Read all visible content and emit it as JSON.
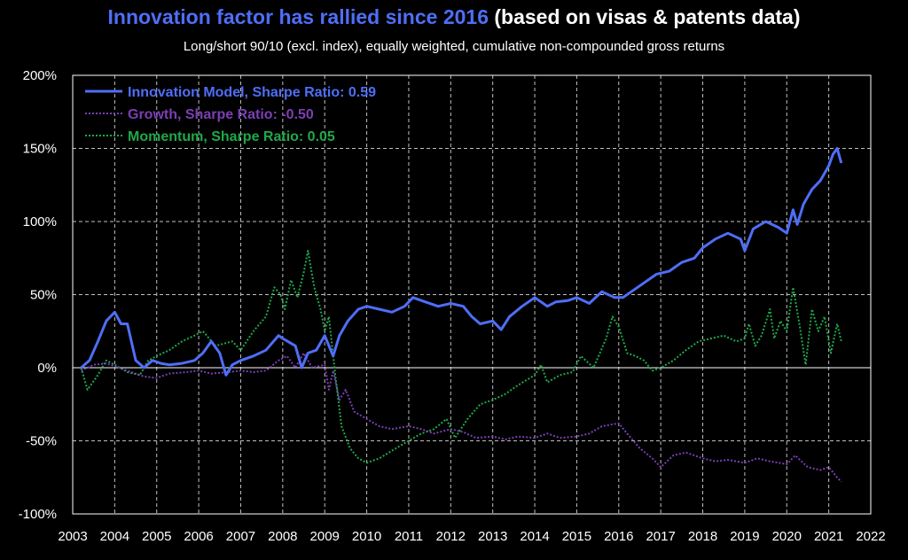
{
  "header": {
    "title_part1": "Innovation factor has rallied since 2016",
    "title_part2": " (based on visas & patents data)",
    "subtitle": "Long/short 90/10 (excl. index), equally weighted, cumulative non-compounded gross returns"
  },
  "colors": {
    "background": "#000000",
    "innovation": "#4f6ef7",
    "growth": "#7b3fb5",
    "momentum": "#1fa84a",
    "grid": "#bfbfbf",
    "axis": "#ffffff"
  },
  "chart_data": {
    "type": "line",
    "title": "Innovation factor has rallied since 2016 (based on visas & patents data)",
    "subtitle": "Long/short 90/10 (excl. index), equally weighted, cumulative non-compounded gross returns",
    "xlabel": "",
    "ylabel": "",
    "xlim": [
      2003,
      2022
    ],
    "ylim": [
      -100,
      200
    ],
    "x_ticks": [
      "2003",
      "2004",
      "2005",
      "2006",
      "2007",
      "2008",
      "2009",
      "2010",
      "2011",
      "2012",
      "2013",
      "2014",
      "2015",
      "2016",
      "2017",
      "2018",
      "2019",
      "2020",
      "2021",
      "2022"
    ],
    "y_ticks": [
      "200%",
      "150%",
      "100%",
      "50%",
      "0%",
      "-50%",
      "-100%"
    ],
    "y_tick_values": [
      200,
      150,
      100,
      50,
      0,
      -50,
      -100
    ],
    "grid": true,
    "legend_position": "top-left",
    "series": [
      {
        "name": "Innovation Model, Sharpe Ratio: 0.59",
        "style": "solid",
        "points": [
          [
            2003.2,
            0
          ],
          [
            2003.4,
            5
          ],
          [
            2003.6,
            18
          ],
          [
            2003.8,
            32
          ],
          [
            2004.0,
            38
          ],
          [
            2004.15,
            30
          ],
          [
            2004.3,
            30
          ],
          [
            2004.5,
            5
          ],
          [
            2004.7,
            0
          ],
          [
            2004.9,
            5
          ],
          [
            2005.1,
            3
          ],
          [
            2005.3,
            2
          ],
          [
            2005.6,
            3
          ],
          [
            2005.9,
            5
          ],
          [
            2006.1,
            10
          ],
          [
            2006.3,
            18
          ],
          [
            2006.5,
            10
          ],
          [
            2006.65,
            -5
          ],
          [
            2006.8,
            2
          ],
          [
            2007.0,
            5
          ],
          [
            2007.3,
            8
          ],
          [
            2007.6,
            12
          ],
          [
            2007.9,
            22
          ],
          [
            2008.0,
            20
          ],
          [
            2008.3,
            15
          ],
          [
            2008.45,
            0
          ],
          [
            2008.6,
            10
          ],
          [
            2008.8,
            12
          ],
          [
            2009.0,
            22
          ],
          [
            2009.2,
            8
          ],
          [
            2009.35,
            22
          ],
          [
            2009.55,
            32
          ],
          [
            2009.8,
            40
          ],
          [
            2010.0,
            42
          ],
          [
            2010.3,
            40
          ],
          [
            2010.6,
            38
          ],
          [
            2010.9,
            42
          ],
          [
            2011.1,
            48
          ],
          [
            2011.4,
            45
          ],
          [
            2011.7,
            42
          ],
          [
            2012.0,
            44
          ],
          [
            2012.3,
            42
          ],
          [
            2012.5,
            35
          ],
          [
            2012.7,
            30
          ],
          [
            2013.0,
            32
          ],
          [
            2013.2,
            26
          ],
          [
            2013.4,
            35
          ],
          [
            2013.7,
            42
          ],
          [
            2014.0,
            48
          ],
          [
            2014.3,
            42
          ],
          [
            2014.5,
            45
          ],
          [
            2014.8,
            46
          ],
          [
            2015.0,
            48
          ],
          [
            2015.3,
            44
          ],
          [
            2015.6,
            52
          ],
          [
            2015.9,
            48
          ],
          [
            2016.1,
            48
          ],
          [
            2016.3,
            52
          ],
          [
            2016.6,
            58
          ],
          [
            2016.9,
            64
          ],
          [
            2017.2,
            66
          ],
          [
            2017.5,
            72
          ],
          [
            2017.8,
            75
          ],
          [
            2018.0,
            82
          ],
          [
            2018.3,
            88
          ],
          [
            2018.6,
            92
          ],
          [
            2018.9,
            88
          ],
          [
            2019.0,
            80
          ],
          [
            2019.2,
            95
          ],
          [
            2019.5,
            100
          ],
          [
            2019.8,
            96
          ],
          [
            2020.0,
            92
          ],
          [
            2020.15,
            108
          ],
          [
            2020.25,
            98
          ],
          [
            2020.4,
            112
          ],
          [
            2020.6,
            122
          ],
          [
            2020.8,
            128
          ],
          [
            2021.0,
            138
          ],
          [
            2021.1,
            146
          ],
          [
            2021.2,
            150
          ],
          [
            2021.3,
            140
          ]
        ]
      },
      {
        "name": "Growth, Sharpe Ratio: -0.50",
        "style": "dotted",
        "points": [
          [
            2003.2,
            -2
          ],
          [
            2003.5,
            2
          ],
          [
            2003.8,
            3
          ],
          [
            2004.1,
            0
          ],
          [
            2004.4,
            -3
          ],
          [
            2004.7,
            -6
          ],
          [
            2005.0,
            -7
          ],
          [
            2005.3,
            -4
          ],
          [
            2005.7,
            -3
          ],
          [
            2006.0,
            -2
          ],
          [
            2006.3,
            -4
          ],
          [
            2006.7,
            -3
          ],
          [
            2007.0,
            -2
          ],
          [
            2007.3,
            -3
          ],
          [
            2007.6,
            -2
          ],
          [
            2007.9,
            5
          ],
          [
            2008.1,
            8
          ],
          [
            2008.3,
            0
          ],
          [
            2008.5,
            10
          ],
          [
            2008.7,
            0
          ],
          [
            2009.0,
            2
          ],
          [
            2009.1,
            -15
          ],
          [
            2009.2,
            -2
          ],
          [
            2009.35,
            -22
          ],
          [
            2009.5,
            -15
          ],
          [
            2009.7,
            -30
          ],
          [
            2010.0,
            -35
          ],
          [
            2010.3,
            -40
          ],
          [
            2010.6,
            -42
          ],
          [
            2011.0,
            -40
          ],
          [
            2011.3,
            -42
          ],
          [
            2011.6,
            -45
          ],
          [
            2012.0,
            -42
          ],
          [
            2012.3,
            -44
          ],
          [
            2012.6,
            -48
          ],
          [
            2013.0,
            -47
          ],
          [
            2013.3,
            -49
          ],
          [
            2013.6,
            -47
          ],
          [
            2014.0,
            -48
          ],
          [
            2014.3,
            -45
          ],
          [
            2014.6,
            -48
          ],
          [
            2015.0,
            -47
          ],
          [
            2015.3,
            -45
          ],
          [
            2015.6,
            -40
          ],
          [
            2016.0,
            -38
          ],
          [
            2016.2,
            -45
          ],
          [
            2016.5,
            -55
          ],
          [
            2016.8,
            -62
          ],
          [
            2017.0,
            -68
          ],
          [
            2017.3,
            -60
          ],
          [
            2017.6,
            -58
          ],
          [
            2018.0,
            -62
          ],
          [
            2018.3,
            -64
          ],
          [
            2018.6,
            -63
          ],
          [
            2019.0,
            -65
          ],
          [
            2019.3,
            -62
          ],
          [
            2019.6,
            -64
          ],
          [
            2020.0,
            -66
          ],
          [
            2020.2,
            -60
          ],
          [
            2020.5,
            -68
          ],
          [
            2020.8,
            -70
          ],
          [
            2021.0,
            -68
          ],
          [
            2021.2,
            -75
          ],
          [
            2021.3,
            -78
          ]
        ]
      },
      {
        "name": "Momentum, Sharpe Ratio: 0.05",
        "style": "dotted",
        "points": [
          [
            2003.2,
            0
          ],
          [
            2003.35,
            -15
          ],
          [
            2003.6,
            -5
          ],
          [
            2003.8,
            5
          ],
          [
            2004.0,
            2
          ],
          [
            2004.3,
            -3
          ],
          [
            2004.6,
            -5
          ],
          [
            2004.8,
            5
          ],
          [
            2005.0,
            8
          ],
          [
            2005.3,
            12
          ],
          [
            2005.6,
            18
          ],
          [
            2005.9,
            22
          ],
          [
            2006.1,
            25
          ],
          [
            2006.4,
            15
          ],
          [
            2006.8,
            18
          ],
          [
            2007.0,
            12
          ],
          [
            2007.3,
            25
          ],
          [
            2007.6,
            35
          ],
          [
            2007.8,
            55
          ],
          [
            2007.95,
            50
          ],
          [
            2008.05,
            40
          ],
          [
            2008.2,
            60
          ],
          [
            2008.35,
            48
          ],
          [
            2008.5,
            65
          ],
          [
            2008.6,
            80
          ],
          [
            2008.75,
            55
          ],
          [
            2008.9,
            40
          ],
          [
            2009.0,
            25
          ],
          [
            2009.1,
            35
          ],
          [
            2009.25,
            -5
          ],
          [
            2009.4,
            -40
          ],
          [
            2009.6,
            -55
          ],
          [
            2009.8,
            -62
          ],
          [
            2010.0,
            -65
          ],
          [
            2010.3,
            -62
          ],
          [
            2010.7,
            -55
          ],
          [
            2011.0,
            -50
          ],
          [
            2011.3,
            -45
          ],
          [
            2011.6,
            -42
          ],
          [
            2011.9,
            -35
          ],
          [
            2012.1,
            -48
          ],
          [
            2012.4,
            -35
          ],
          [
            2012.7,
            -25
          ],
          [
            2013.0,
            -22
          ],
          [
            2013.3,
            -18
          ],
          [
            2013.6,
            -12
          ],
          [
            2014.0,
            -5
          ],
          [
            2014.15,
            2
          ],
          [
            2014.3,
            -10
          ],
          [
            2014.6,
            -5
          ],
          [
            2014.9,
            -3
          ],
          [
            2015.1,
            8
          ],
          [
            2015.4,
            0
          ],
          [
            2015.7,
            20
          ],
          [
            2015.85,
            35
          ],
          [
            2016.0,
            28
          ],
          [
            2016.2,
            10
          ],
          [
            2016.4,
            8
          ],
          [
            2016.6,
            5
          ],
          [
            2016.8,
            -2
          ],
          [
            2017.0,
            0
          ],
          [
            2017.3,
            5
          ],
          [
            2017.6,
            12
          ],
          [
            2017.9,
            18
          ],
          [
            2018.2,
            20
          ],
          [
            2018.5,
            22
          ],
          [
            2018.8,
            18
          ],
          [
            2019.0,
            20
          ],
          [
            2019.1,
            30
          ],
          [
            2019.25,
            15
          ],
          [
            2019.4,
            22
          ],
          [
            2019.6,
            40
          ],
          [
            2019.7,
            20
          ],
          [
            2019.85,
            32
          ],
          [
            2020.0,
            25
          ],
          [
            2020.15,
            55
          ],
          [
            2020.3,
            30
          ],
          [
            2020.45,
            2
          ],
          [
            2020.6,
            40
          ],
          [
            2020.75,
            25
          ],
          [
            2020.9,
            35
          ],
          [
            2021.05,
            10
          ],
          [
            2021.2,
            30
          ],
          [
            2021.3,
            18
          ]
        ]
      }
    ]
  }
}
